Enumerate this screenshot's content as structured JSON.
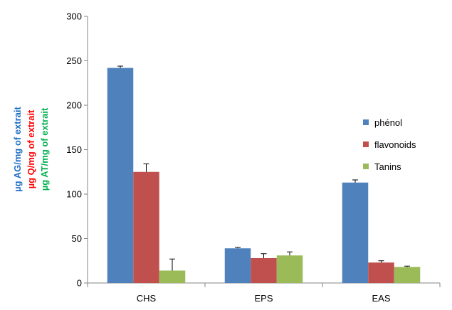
{
  "chart_data": {
    "type": "bar",
    "categories": [
      "CHS",
      "EPS",
      "EAS"
    ],
    "series": [
      {
        "name": "phénol",
        "color": "#4F81BD",
        "values": [
          242,
          39,
          113
        ],
        "errors": [
          2,
          1,
          3
        ]
      },
      {
        "name": "flavonoids",
        "color": "#C0504D",
        "values": [
          125,
          28,
          23
        ],
        "errors": [
          9,
          5,
          2
        ]
      },
      {
        "name": "Tanins",
        "color": "#9BBB59",
        "values": [
          14,
          31,
          18
        ],
        "errors": [
          13,
          4,
          1
        ]
      }
    ],
    "ylim": [
      0,
      300
    ],
    "yticks": [
      0,
      50,
      100,
      150,
      200,
      250,
      300
    ],
    "ylabels": [
      {
        "text": "µg AG/mg of extrait",
        "color": "#1F6FC5"
      },
      {
        "text": "µg Q/mg of extrait",
        "color": "#FF0000"
      },
      {
        "text": "µg AT/mg  of extrait",
        "color": "#00B050"
      }
    ],
    "legend_position": "right",
    "grid": false
  }
}
